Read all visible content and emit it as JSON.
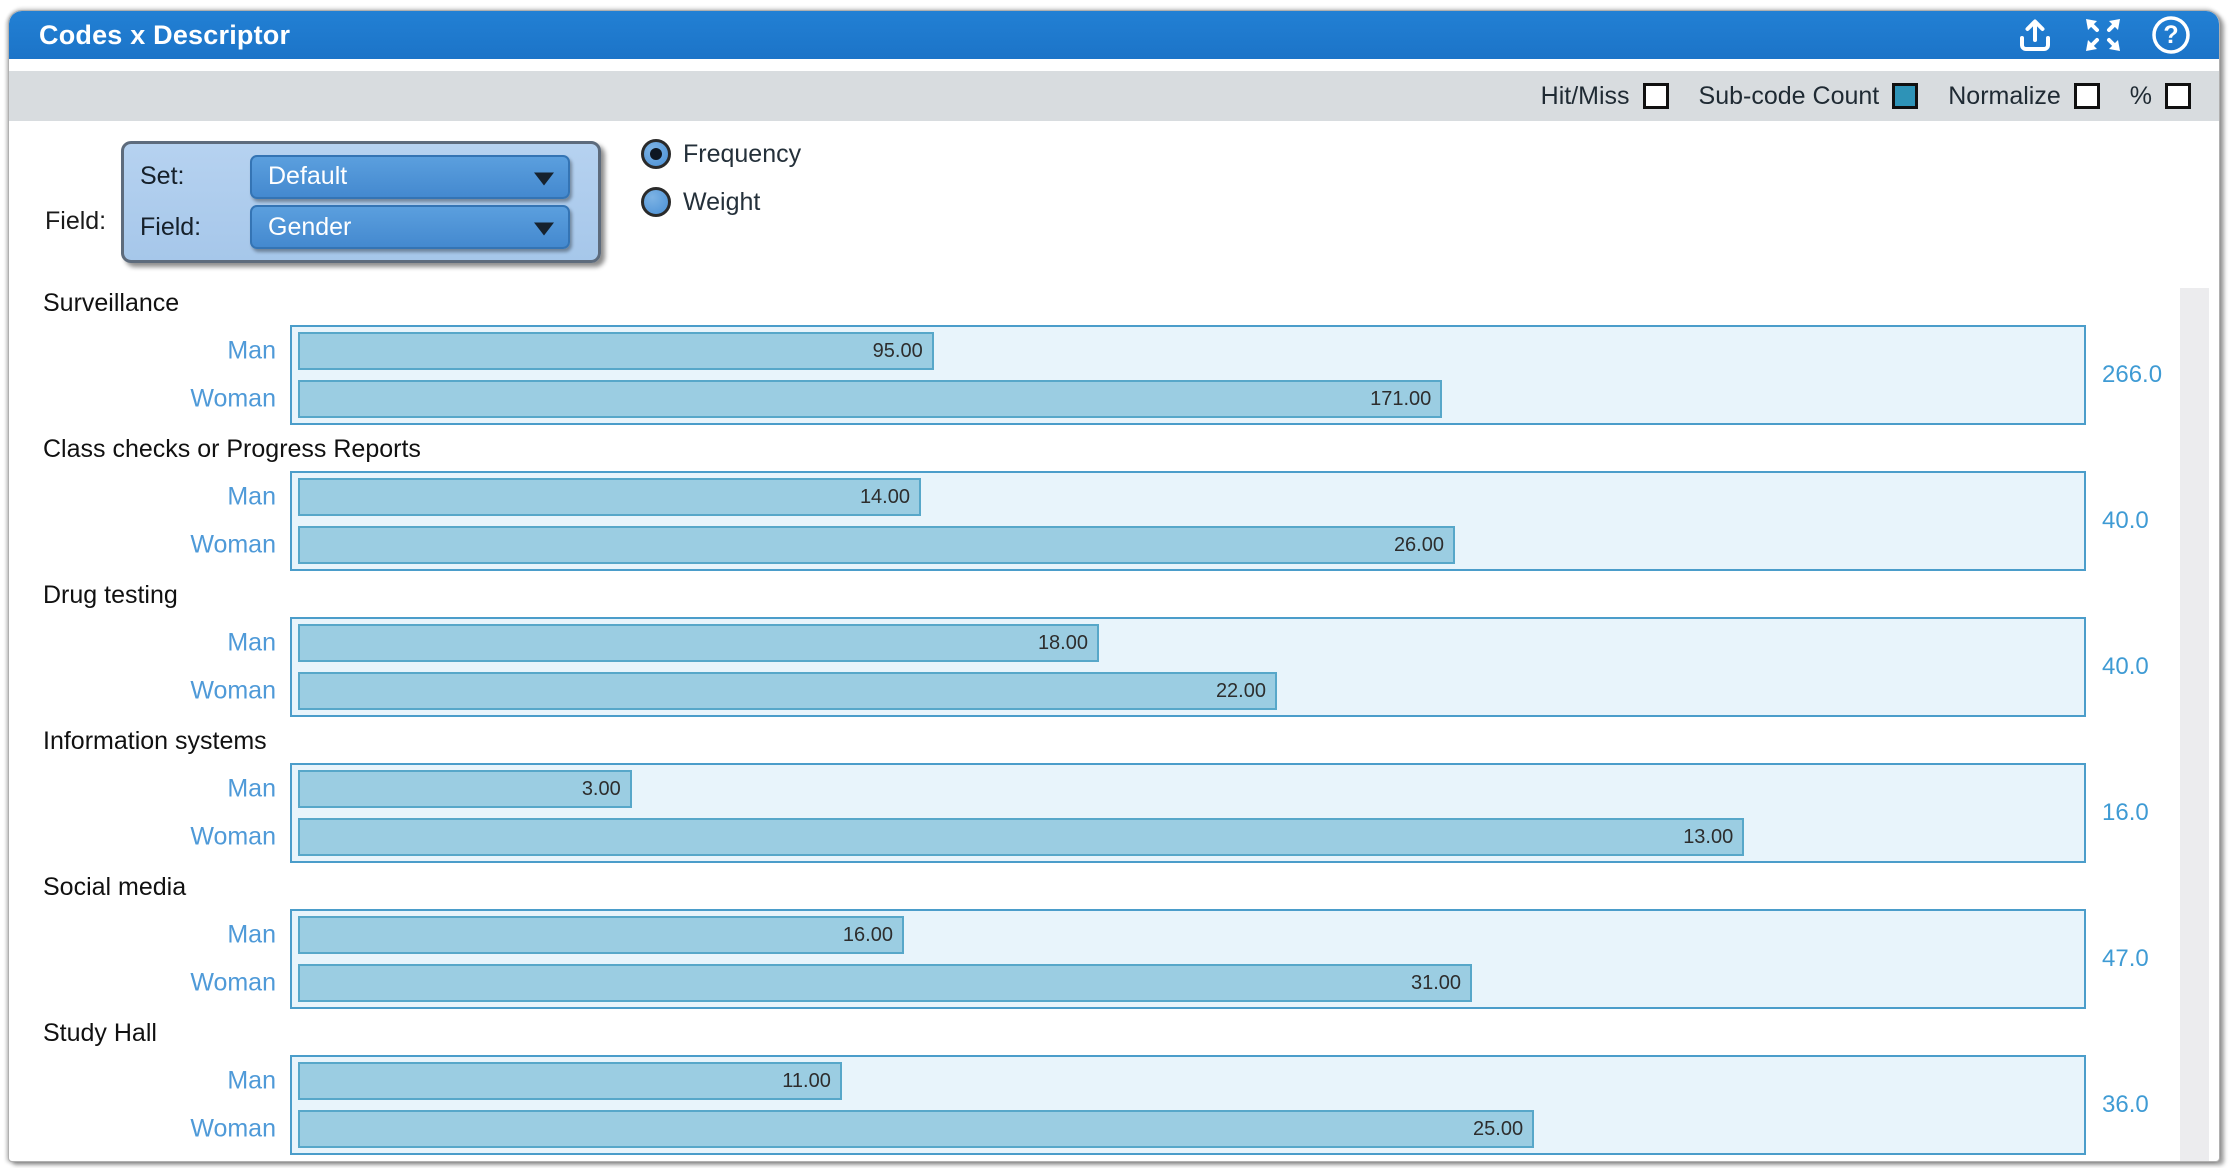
{
  "window": {
    "title": "Codes x Descriptor",
    "titlebar_icons": [
      {
        "name": "export-icon"
      },
      {
        "name": "expand-icon"
      },
      {
        "name": "help-icon"
      }
    ]
  },
  "toolbar": {
    "options": [
      {
        "label": "Hit/Miss",
        "checked": false
      },
      {
        "label": "Sub-code Count",
        "checked": true
      },
      {
        "label": "Normalize",
        "checked": false
      },
      {
        "label": "%",
        "checked": false
      }
    ],
    "checked_color": "#2e93b7"
  },
  "controls": {
    "outer_label": "Field:",
    "set_label": "Set:",
    "set_value": "Default",
    "field_label": "Field:",
    "field_value": "Gender",
    "radios": [
      {
        "label": "Frequency",
        "selected": true
      },
      {
        "label": "Weight",
        "selected": false
      }
    ]
  },
  "chart_data": {
    "type": "bar",
    "orientation": "horizontal",
    "categories": [
      "Surveillance",
      "Class checks or Progress Reports",
      "Drug testing",
      "Information systems",
      "Social media",
      "Study Hall"
    ],
    "series": [
      {
        "name": "Man",
        "values": [
          95,
          14,
          18,
          3,
          16,
          11
        ]
      },
      {
        "name": "Woman",
        "values": [
          171,
          26,
          22,
          13,
          31,
          25
        ]
      }
    ],
    "group_totals": [
      266.0,
      40.0,
      40.0,
      16.0,
      47.0,
      36.0
    ],
    "value_label_decimals": 2,
    "total_label_decimals": 1,
    "bar_width_rule": "value divided by group total",
    "legend": "none",
    "grid": false,
    "colors": {
      "bar_fill": "#9bcde2",
      "bar_border": "#57a7c9",
      "group_box_fill": "#e8f4fb",
      "group_box_border": "#4b9dca",
      "category_label": "#4f9ad8",
      "total_label": "#3f9bd4",
      "value_label": "#2d2d2d"
    }
  },
  "colors": {
    "titlebar": "#1e78cd",
    "toolbar_bg": "#d8dcdf",
    "panel_bg": "#aecbec",
    "dropdown_bg": "#4b92d9"
  }
}
